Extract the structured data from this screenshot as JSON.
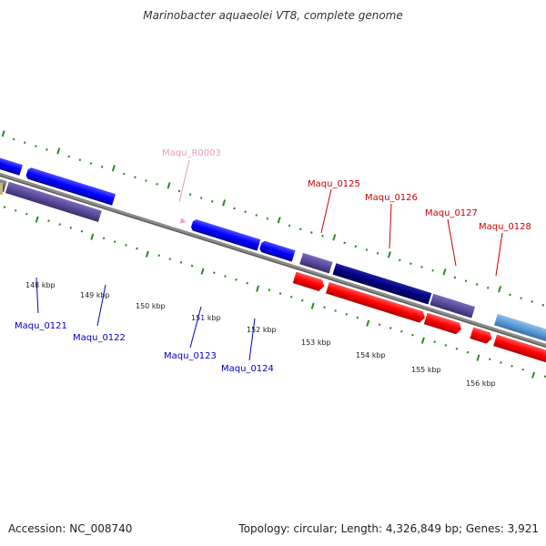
{
  "title": "Marinobacter aquaeolei VT8, complete genome",
  "footer": {
    "accession": "Accession: NC_008740",
    "topology": "Topology: circular; Length: 4,326,849 bp; Genes: 3,921"
  },
  "colors": {
    "backbone": "#8a8a8a",
    "tick_dot": "#2b8a2b",
    "forward_gene": "#ff0000",
    "reverse_gene": "#0000ff",
    "forward_hypothetical": "#000080",
    "reverse_hypothetical": "#5a4a9a",
    "steelblue": "#5b9bd5",
    "rna": "#ff99cc",
    "gray_gene": "#666666",
    "khaki": "#c8b888",
    "label_forward": "#cc0000",
    "label_reverse": "#0000cc",
    "label_rna": "#ee99bb"
  },
  "scale_labels": [
    {
      "text": "148 kbp",
      "kbp": 148
    },
    {
      "text": "149 kbp",
      "kbp": 149
    },
    {
      "text": "150 kbp",
      "kbp": 150
    },
    {
      "text": "151 kbp",
      "kbp": 151
    },
    {
      "text": "152 kbp",
      "kbp": 152
    },
    {
      "text": "153 kbp",
      "kbp": 153
    },
    {
      "text": "154 kbp",
      "kbp": 154
    },
    {
      "text": "155 kbp",
      "kbp": 155
    },
    {
      "text": "156 kbp",
      "kbp": 156
    }
  ],
  "gene_labels": [
    {
      "text": "Maqu_0121",
      "kind": "reverse"
    },
    {
      "text": "Maqu_0122",
      "kind": "reverse"
    },
    {
      "text": "Maqu_0123",
      "kind": "reverse"
    },
    {
      "text": "Maqu_0124",
      "kind": "reverse"
    },
    {
      "text": "Maqu_R0003",
      "kind": "rna"
    },
    {
      "text": "Maqu_0125",
      "kind": "forward"
    },
    {
      "text": "Maqu_0126",
      "kind": "forward"
    },
    {
      "text": "Maqu_0127",
      "kind": "forward"
    },
    {
      "text": "Maqu_0128",
      "kind": "forward"
    }
  ]
}
